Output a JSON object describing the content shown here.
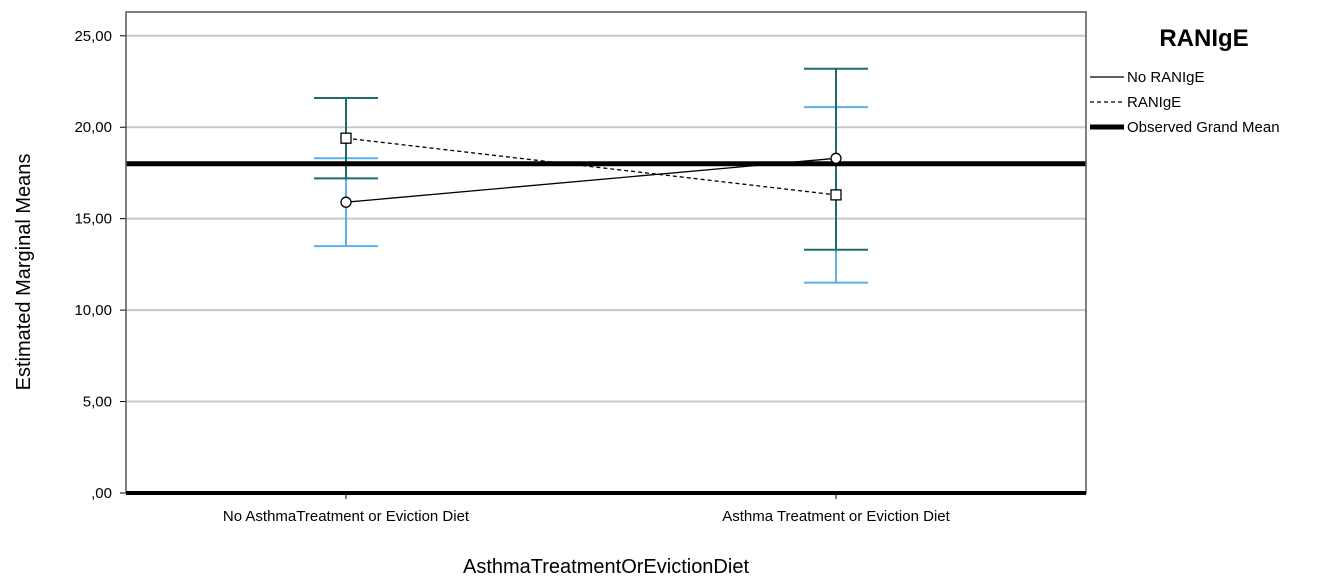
{
  "chart_data": {
    "type": "line",
    "xlabel": "AsthmaTreatmentOrEvictionDiet",
    "ylabel": "Estimated Marginal Means",
    "categories": [
      "No AsthmaTreatment or  Eviction Diet",
      "Asthma Treatment or Eviction Diet"
    ],
    "ylim": [
      0,
      26.3
    ],
    "yticks": [
      0,
      5,
      10,
      15,
      20,
      25
    ],
    "ytick_labels": [
      ",00",
      "5,00",
      "10,00",
      "15,00",
      "20,00",
      "25,00"
    ],
    "grid": true,
    "legend": {
      "title": "RANIgE",
      "placement": "right",
      "entries": [
        "No RANIgE",
        "RANIgE",
        "Observed Grand Mean"
      ]
    },
    "reference_line": {
      "name": "Observed Grand Mean",
      "value": 18.0
    },
    "series": [
      {
        "name": "No RANIgE",
        "values": [
          15.9,
          18.3
        ],
        "ci_low": [
          13.5,
          11.5
        ],
        "ci_high": [
          18.3,
          21.1
        ],
        "marker": "circle",
        "line": "solid",
        "color": "#000000",
        "errorbar_color": "#5ab0e8"
      },
      {
        "name": "RANIgE",
        "values": [
          19.4,
          16.3
        ],
        "ci_low": [
          17.2,
          13.3
        ],
        "ci_high": [
          21.6,
          23.2
        ],
        "marker": "square",
        "line": "dashed",
        "color": "#000000",
        "errorbar_color": "#1f6b6b"
      }
    ]
  }
}
